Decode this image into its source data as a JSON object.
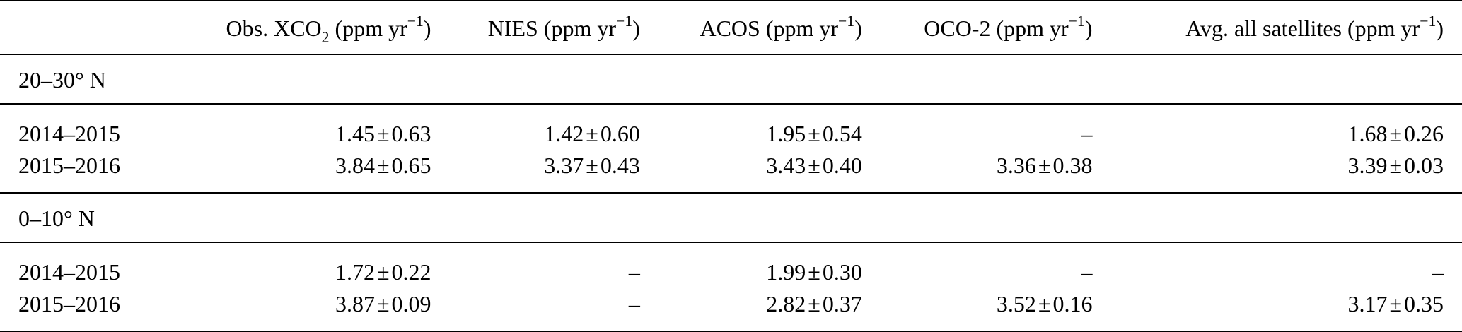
{
  "table": {
    "headers": {
      "blank": "",
      "obs": {
        "prefix": "Obs. XCO",
        "sub": "2",
        "mid": " (ppm yr",
        "sup": "−1",
        "suffix": ")"
      },
      "nies": {
        "prefix": "NIES (ppm yr",
        "sup": "−1",
        "suffix": ")"
      },
      "acos": {
        "prefix": "ACOS (ppm yr",
        "sup": "−1",
        "suffix": ")"
      },
      "oco2": {
        "prefix": "OCO-2 (ppm yr",
        "sup": "−1",
        "suffix": ")"
      },
      "avg": {
        "prefix": "Avg. all satellites (ppm yr",
        "sup": "−1",
        "suffix": ")"
      }
    },
    "sections": [
      {
        "label": "20–30° N",
        "rows": [
          {
            "period": "2014–2015",
            "obs": {
              "val": "1.45",
              "err": "0.63"
            },
            "nies": {
              "val": "1.42",
              "err": "0.60"
            },
            "acos": {
              "val": "1.95",
              "err": "0.54"
            },
            "oco2": {
              "dash": "–"
            },
            "avg": {
              "val": "1.68",
              "err": "0.26"
            }
          },
          {
            "period": "2015–2016",
            "obs": {
              "val": "3.84",
              "err": "0.65"
            },
            "nies": {
              "val": "3.37",
              "err": "0.43"
            },
            "acos": {
              "val": "3.43",
              "err": "0.40"
            },
            "oco2": {
              "val": "3.36",
              "err": "0.38"
            },
            "avg": {
              "val": "3.39",
              "err": "0.03"
            }
          }
        ]
      },
      {
        "label": "0–10° N",
        "rows": [
          {
            "period": "2014–2015",
            "obs": {
              "val": "1.72",
              "err": "0.22"
            },
            "nies": {
              "dash": "–"
            },
            "acos": {
              "val": "1.99",
              "err": "0.30"
            },
            "oco2": {
              "dash": "–"
            },
            "avg": {
              "dash": "–"
            }
          },
          {
            "period": "2015–2016",
            "obs": {
              "val": "3.87",
              "err": "0.09"
            },
            "nies": {
              "dash": "–"
            },
            "acos": {
              "val": "2.82",
              "err": "0.37"
            },
            "oco2": {
              "val": "3.52",
              "err": "0.16"
            },
            "avg": {
              "val": "3.17",
              "err": "0.35"
            }
          }
        ]
      }
    ],
    "pm_symbol": "±"
  }
}
